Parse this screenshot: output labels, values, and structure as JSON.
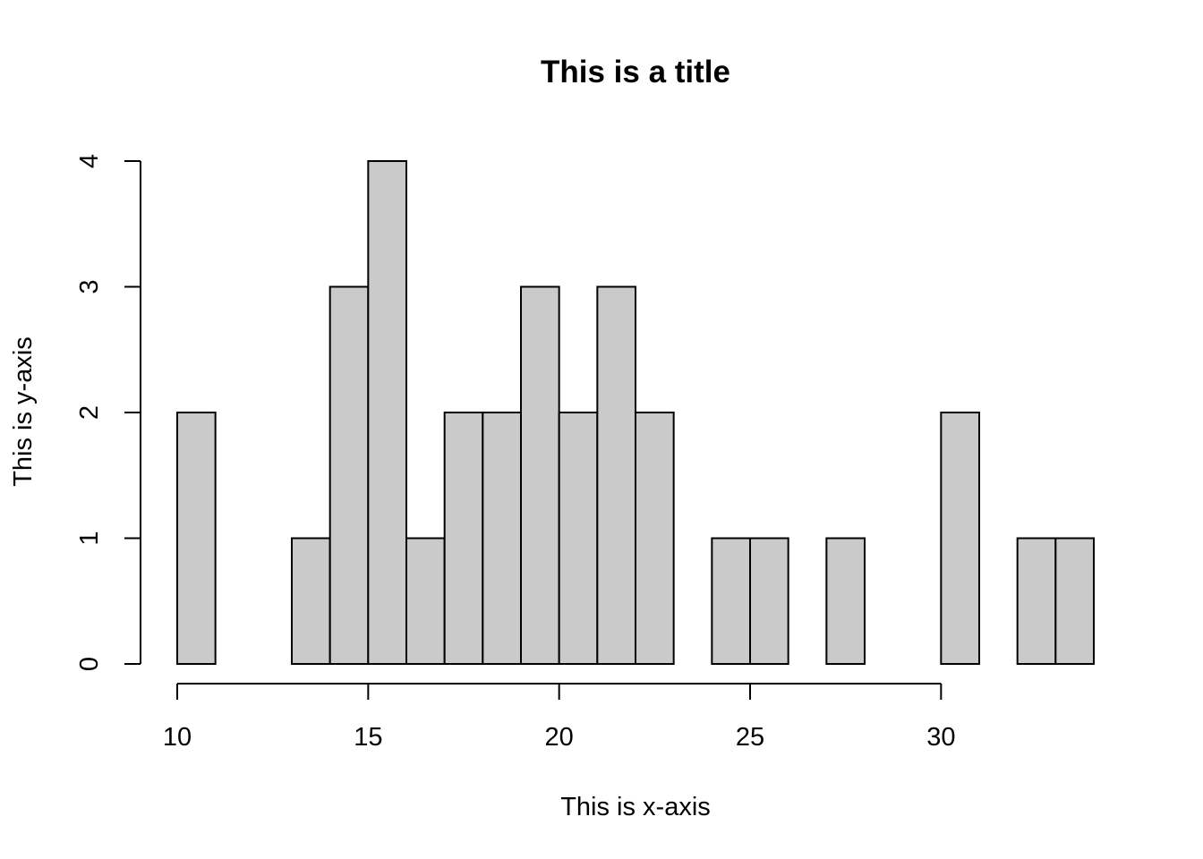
{
  "chart_data": {
    "type": "bar",
    "title": "This is a title",
    "xlabel": "This is x-axis",
    "ylabel": "This is y-axis",
    "bin_edges": [
      10,
      11,
      12,
      13,
      14,
      15,
      16,
      17,
      18,
      19,
      20,
      21,
      22,
      23,
      24,
      25,
      26,
      27,
      28,
      29,
      30,
      31,
      32,
      33,
      34
    ],
    "values": [
      2,
      0,
      0,
      1,
      3,
      4,
      1,
      2,
      2,
      3,
      2,
      3,
      2,
      0,
      1,
      1,
      0,
      1,
      0,
      0,
      2,
      0,
      1,
      1
    ],
    "xlim": [
      10,
      34
    ],
    "ylim": [
      0,
      4
    ],
    "x_ticks": [
      10,
      15,
      20,
      25,
      30
    ],
    "x_tick_labels": [
      "10",
      "15",
      "20",
      "25",
      "30"
    ],
    "y_ticks": [
      0,
      1,
      2,
      3,
      4
    ],
    "y_tick_labels": [
      "0",
      "1",
      "2",
      "3",
      "4"
    ],
    "grid": false,
    "colors": {
      "bar_fill": "#cacaca",
      "bar_stroke": "#000000"
    }
  }
}
